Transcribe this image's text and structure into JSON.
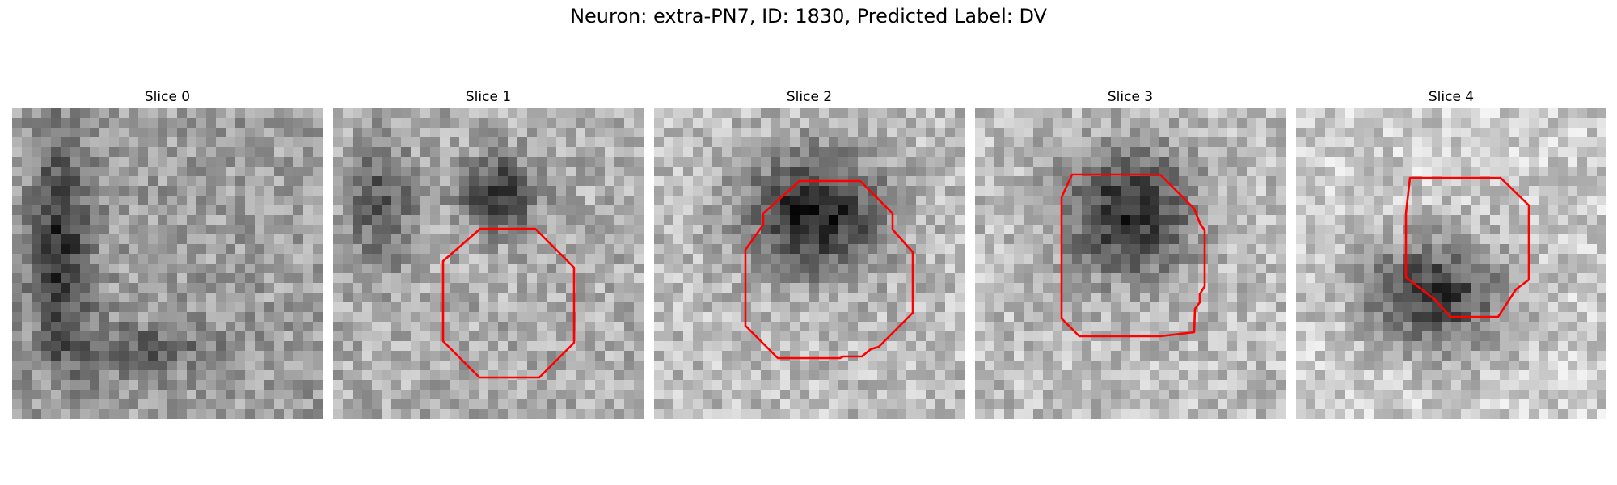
{
  "title": "Neuron: extra-PN7, ID: 1830, Predicted Label: DV",
  "contour_color": "#ff0000",
  "panels": [
    {
      "label": "Slice 0",
      "has_contour": false
    },
    {
      "label": "Slice 1",
      "has_contour": true
    },
    {
      "label": "Slice 2",
      "has_contour": true
    },
    {
      "label": "Slice 3",
      "has_contour": true
    },
    {
      "label": "Slice 4",
      "has_contour": true
    }
  ]
}
